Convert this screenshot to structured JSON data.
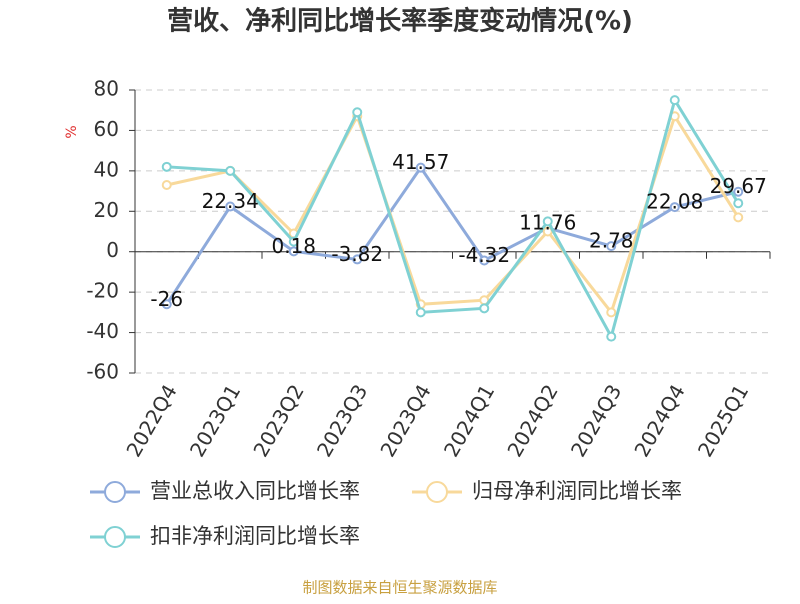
{
  "chart_data": {
    "type": "line",
    "title": "营收、净利同比增长率季度变动情况(%)",
    "y_label": "%",
    "source": "制图数据来自恒生聚源数据库",
    "categories": [
      "2022Q4",
      "2023Q1",
      "2023Q2",
      "2023Q3",
      "2023Q4",
      "2024Q1",
      "2024Q2",
      "2024Q3",
      "2024Q4",
      "2025Q1"
    ],
    "series": [
      {
        "name": "营业总收入同比增长率",
        "color": "#8eaadb",
        "values": [
          -26,
          22.34,
          0.18,
          -3.82,
          41.57,
          -4.32,
          11.76,
          2.78,
          22.08,
          29.67
        ],
        "labels": true
      },
      {
        "name": "归母净利润同比增长率",
        "color": "#f8d99b",
        "values": [
          33,
          40,
          9,
          67,
          -26,
          -24,
          10,
          -30,
          67,
          17
        ]
      },
      {
        "name": "扣非净利润同比增长率",
        "color": "#7fd1d3",
        "values": [
          42,
          40,
          5,
          69,
          -30,
          -28,
          15,
          -42,
          75,
          24
        ]
      }
    ],
    "ylim": [
      -60,
      80
    ],
    "yticks": [
      -60,
      -40,
      -20,
      0,
      20,
      40,
      60,
      80
    ],
    "grid": true
  }
}
